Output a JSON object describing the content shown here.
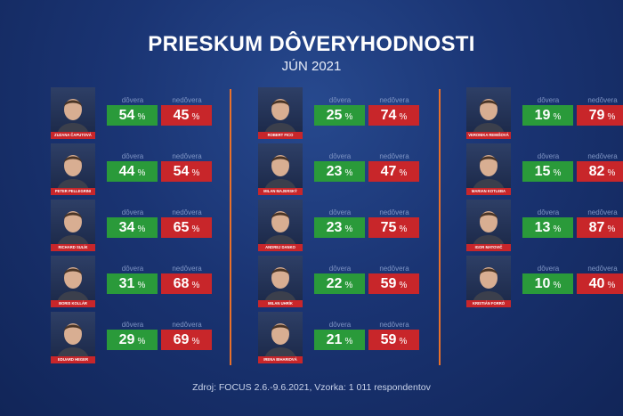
{
  "title": "PRIESKUM DÔVERYHODNOSTI",
  "subtitle": "JÚN 2021",
  "trust_label": "dôvera",
  "distrust_label": "nedôvera",
  "percent_sign": "%",
  "source": "Zdroj: FOCUS 2.6.-9.6.2021, Vzorka: 1 011 respondentov",
  "colors": {
    "trust": "#2a9a3a",
    "distrust": "#c8262a",
    "divider": "#e8702a",
    "background": "#1a3473"
  },
  "columns": [
    {
      "people": [
        {
          "name": "ZUZANA ČAPUTOVÁ",
          "trust": "54",
          "distrust": "45"
        },
        {
          "name": "PETER PELLEGRINI",
          "trust": "44",
          "distrust": "54"
        },
        {
          "name": "RICHARD SULÍK",
          "trust": "34",
          "distrust": "65"
        },
        {
          "name": "BORIS KOLLÁR",
          "trust": "31",
          "distrust": "68"
        },
        {
          "name": "EDUARD HEGER",
          "trust": "29",
          "distrust": "69"
        }
      ]
    },
    {
      "people": [
        {
          "name": "ROBERT FICO",
          "trust": "25",
          "distrust": "74"
        },
        {
          "name": "MILAN MAJERSKÝ",
          "trust": "23",
          "distrust": "47"
        },
        {
          "name": "ANDREJ DANKO",
          "trust": "23",
          "distrust": "75"
        },
        {
          "name": "MILAN UHRÍK",
          "trust": "22",
          "distrust": "59"
        },
        {
          "name": "IRENA BIHARIOVÁ",
          "trust": "21",
          "distrust": "59"
        }
      ]
    },
    {
      "people": [
        {
          "name": "VERONIKA REMIŠOVÁ",
          "trust": "19",
          "distrust": "79"
        },
        {
          "name": "MARIAN KOTLEBA",
          "trust": "15",
          "distrust": "82"
        },
        {
          "name": "IGOR MATOVIČ",
          "trust": "13",
          "distrust": "87"
        },
        {
          "name": "KRISTIÁN FORRÓ",
          "trust": "10",
          "distrust": "40"
        }
      ]
    }
  ]
}
